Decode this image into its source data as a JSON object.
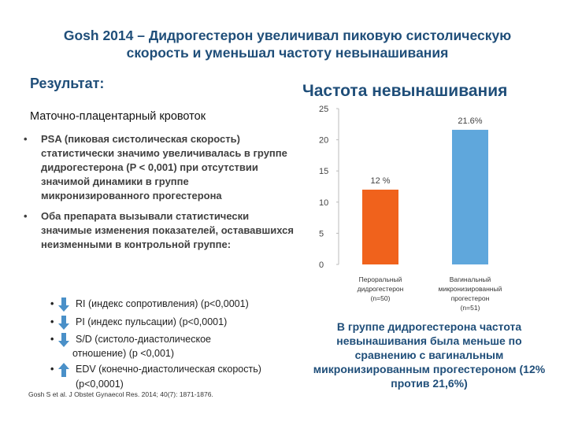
{
  "title_line1": "Gosh 2014 – Дидрогестерон увеличивал пиковую систолическую",
  "title_line2": "скорость и уменьшал частоту невынашивания",
  "result_label": "Результат:",
  "subheading": "Маточно-плацентарный кровоток",
  "bullets": [
    "PSA (пиковая систолическая скорость) статистически значимо увеличивалась в группе дидрогестерона (P < 0,001) при отсутствии значимой динамики в группе микронизированного прогестерона",
    "Оба препарата вызывали статистически значимые изменения показателей, остававшихся неизменными в контрольной группе:"
  ],
  "sub_bullets": [
    "RI (индекс сопротивления) (р<0,0001)",
    "PI (индекс пульсации) (р<0,0001)",
    "S/D (систоло-диастолическое",
    "отношение) (р <0,001)",
    "EDV (конечно-диастолическая скорость)",
    "(р<0,0001)"
  ],
  "reference": "Gosh S et al. J Obstet Gynaecol Res. 2014; 40(7): 1871-1876.",
  "conclusion": "В группе дидрогестерона частота невынашивания была меньше по сравнению с вагинальным микронизированным прогестероном (12% против 21,6%)",
  "colors": {
    "orange": "#f0621c",
    "blue": "#5fa7dc",
    "heading": "#1f4e79",
    "arrow": "#4a90c8"
  },
  "chart_data": {
    "type": "bar",
    "title": "Частота невынашивания",
    "categories": [
      [
        "Пероральный",
        "дидрогестерон",
        "(n=50)"
      ],
      [
        "Вагинальный",
        "микронизированный",
        "прогестерон",
        "(n=51)"
      ]
    ],
    "values": [
      12,
      21.6
    ],
    "data_labels": [
      "12 %",
      "21.6%"
    ],
    "yticks": [
      "25",
      "20",
      "15",
      "10",
      "5",
      "0"
    ],
    "ylim": [
      0,
      25
    ],
    "series_colors": [
      "#f0621c",
      "#5fa7dc"
    ]
  }
}
